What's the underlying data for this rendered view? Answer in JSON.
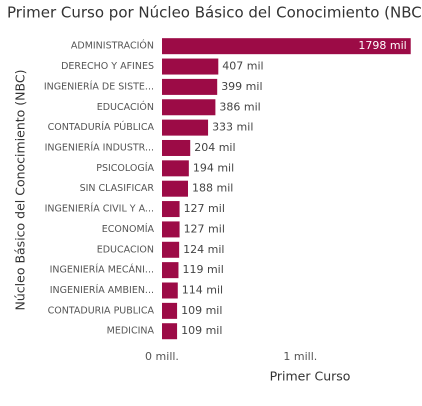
{
  "chart_data": {
    "type": "bar",
    "orientation": "horizontal",
    "title": "Primer Curso por Núcleo Básico del Conocimiento (NBC",
    "x_label": "Primer Curso",
    "y_label": "Núcleo Básico del Conocimiento (NBC)",
    "categories": [
      "ADMINISTRACIÓN",
      "DERECHO Y AFINES",
      "INGENIERÍA DE SISTE...",
      "EDUCACIÓN",
      "CONTADURÍA PÚBLICA",
      "INGENIERÍA INDUSTR...",
      "PSICOLOGÍA",
      "SIN CLASIFICAR",
      "INGENIERÍA CIVIL Y A...",
      "ECONOMÍA",
      "EDUCACION",
      "INGENIERÍA MECÁNI...",
      "INGENIERÍA AMBIEN...",
      "CONTADURIA PUBLICA",
      "MEDICINA"
    ],
    "values": [
      1798000,
      407000,
      399000,
      386000,
      333000,
      204000,
      194000,
      188000,
      127000,
      127000,
      124000,
      119000,
      114000,
      109000,
      109000
    ],
    "value_labels": [
      "1798 mil",
      "407 mil",
      "399 mil",
      "386 mil",
      "333 mil",
      "204 mil",
      "194 mil",
      "188 mil",
      "127 mil",
      "127 mil",
      "124 mil",
      "119 mil",
      "114 mil",
      "109 mil",
      "109 mil"
    ],
    "color": "#9c0b46",
    "xlim": [
      0,
      1800000
    ],
    "xticks": [
      {
        "value": 0,
        "label": "0 mill."
      },
      {
        "value": 1000000,
        "label": "1 mill."
      }
    ]
  }
}
